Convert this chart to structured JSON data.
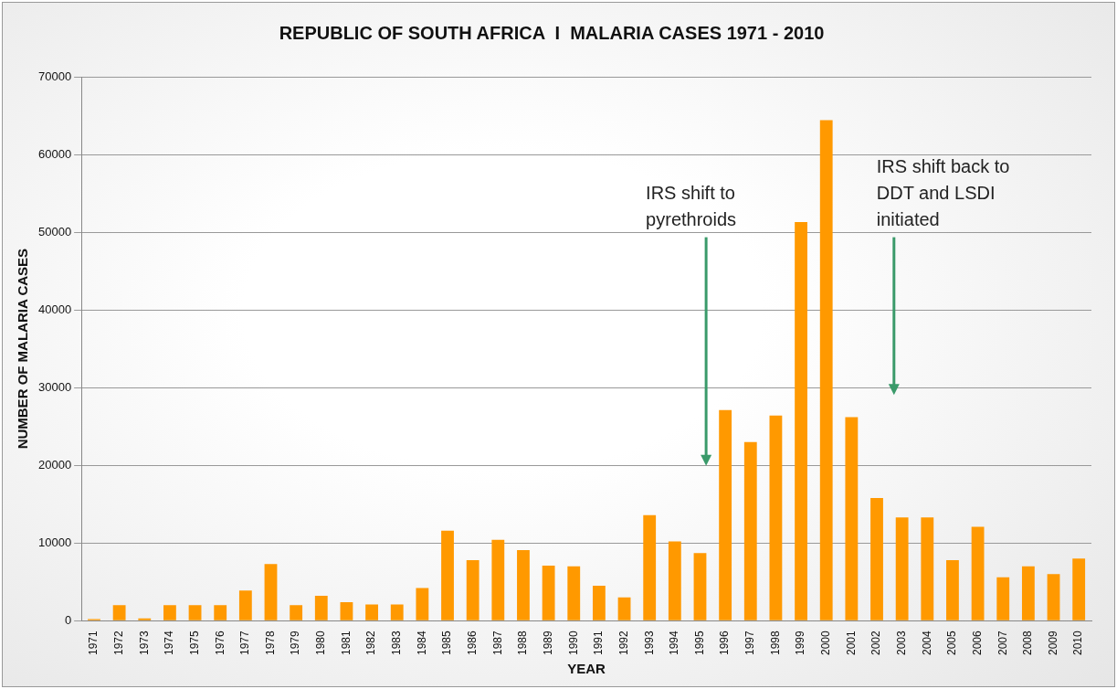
{
  "chart_data": {
    "type": "bar",
    "title": "REPUBLIC OF SOUTH AFRICA  I  MALARIA CASES 1971 - 2010",
    "xlabel": "YEAR",
    "ylabel": "NUMBER OF MALARIA CASES",
    "categories": [
      "1971",
      "1972",
      "1973",
      "1974",
      "1975",
      "1976",
      "1977",
      "1978",
      "1979",
      "1980",
      "1981",
      "1982",
      "1983",
      "1984",
      "1985",
      "1986",
      "1987",
      "1988",
      "1989",
      "1990",
      "1991",
      "1992",
      "1993",
      "1994",
      "1995",
      "1996",
      "1997",
      "1998",
      "1999",
      "2000",
      "2001",
      "2002",
      "2003",
      "2004",
      "2005",
      "2006",
      "2007",
      "2008",
      "2009",
      "2010"
    ],
    "values": [
      200,
      2000,
      300,
      2000,
      2000,
      2000,
      3900,
      7300,
      2000,
      3200,
      2400,
      2100,
      2100,
      4200,
      11600,
      7800,
      10400,
      9100,
      7100,
      7000,
      4500,
      3000,
      13600,
      10200,
      8700,
      27100,
      23000,
      26400,
      51300,
      64400,
      26200,
      15800,
      13300,
      13300,
      7800,
      12100,
      5600,
      7000,
      6000,
      8000
    ],
    "color": "#ff9900",
    "ylim": [
      0,
      70000
    ],
    "yticks": [
      0,
      10000,
      20000,
      30000,
      40000,
      50000,
      60000,
      70000
    ],
    "grid": "y",
    "legend": false,
    "annotations": [
      "IRS shift to\npyrethroids",
      "IRS shift back to\nDDT and LSDI\ninitiated"
    ]
  }
}
